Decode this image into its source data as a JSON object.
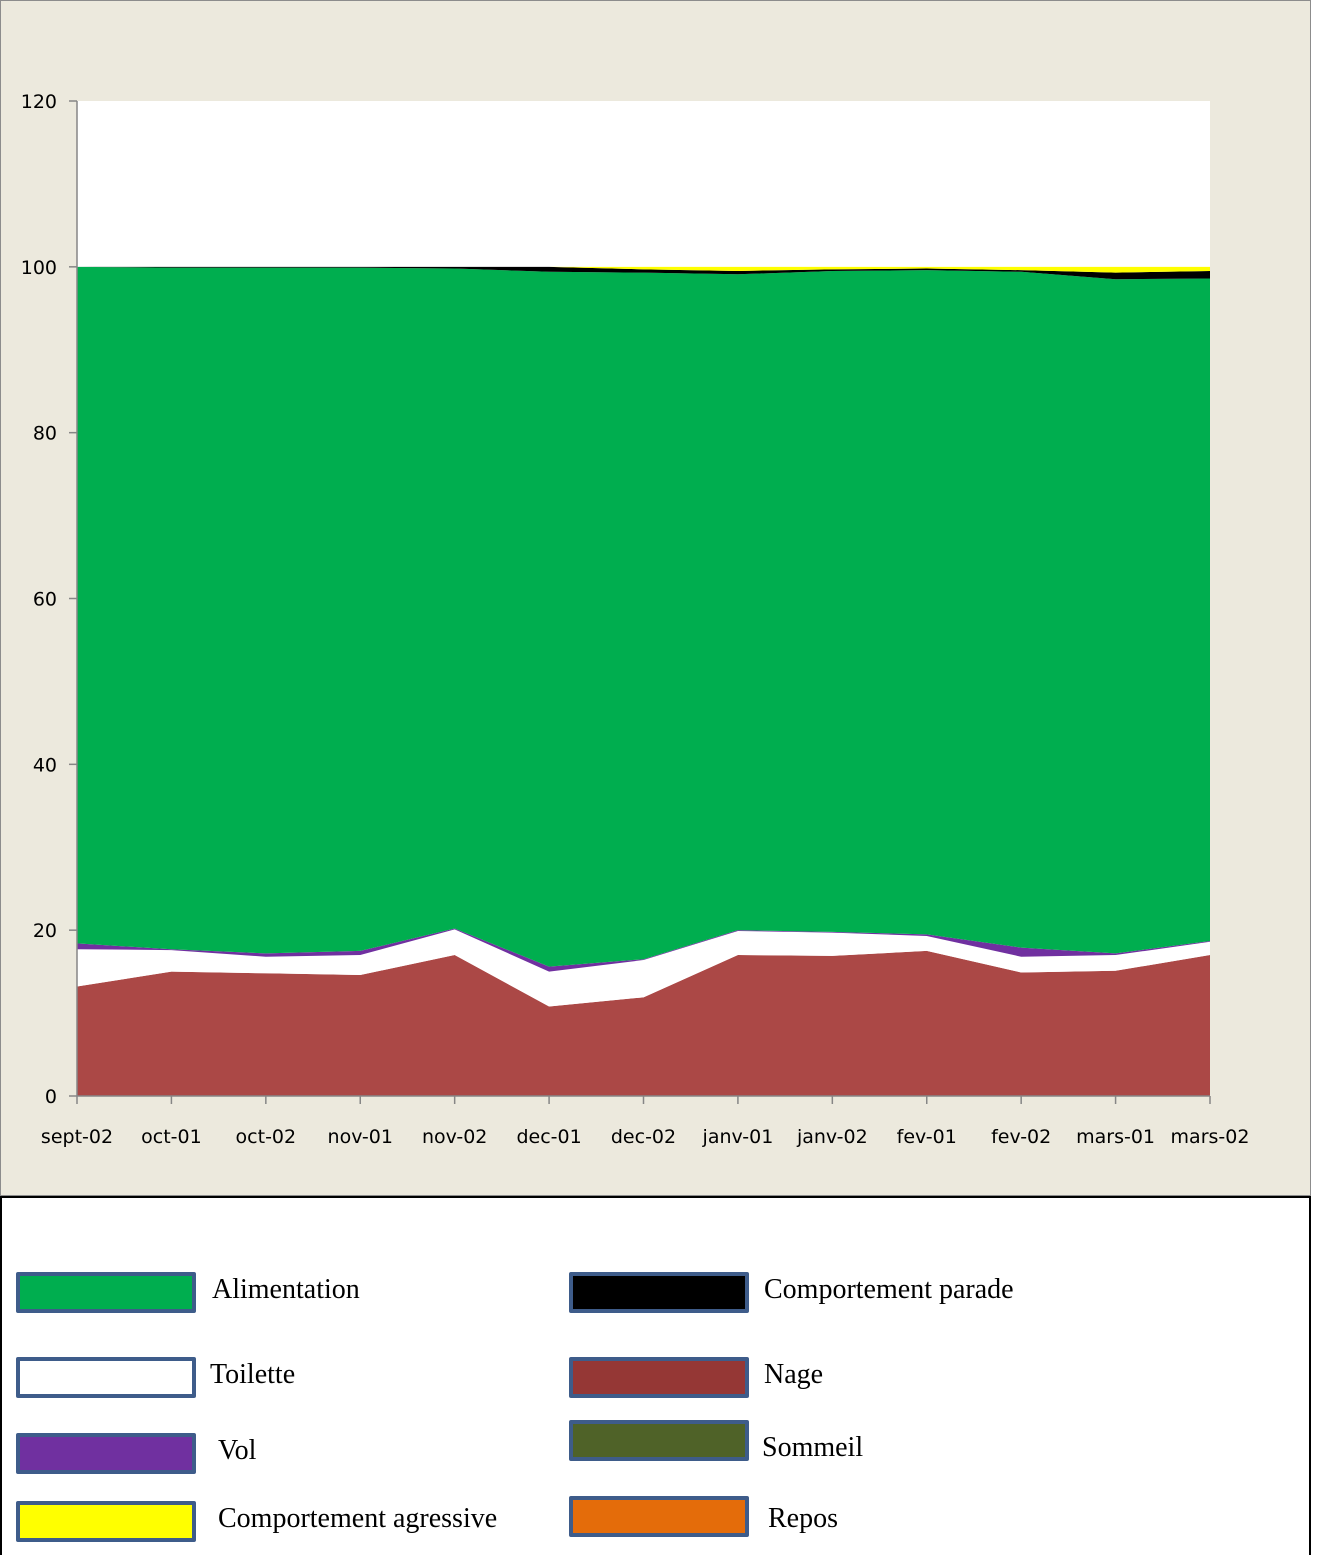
{
  "chart_data": {
    "type": "area",
    "stacked": true,
    "categories": [
      "sept-02",
      "oct-01",
      "oct-02",
      "nov-01",
      "nov-02",
      "dec-01",
      "dec-02",
      "janv-01",
      "janv-02",
      "fev-01",
      "fev-02",
      "mars-01",
      "mars-02"
    ],
    "ylim": [
      0,
      120
    ],
    "yticks": [
      0,
      20,
      40,
      60,
      80,
      100,
      120
    ],
    "grid": false,
    "series": [
      {
        "name": "Nage",
        "color": "#ab4846",
        "values": [
          13.2,
          15.0,
          14.8,
          14.6,
          17.0,
          10.8,
          11.9,
          17.0,
          16.9,
          17.5,
          14.9,
          15.1,
          17.0
        ]
      },
      {
        "name": "Toilette",
        "color": "#ffffff",
        "values": [
          4.5,
          2.6,
          2.0,
          2.4,
          3.1,
          4.2,
          4.5,
          2.9,
          2.8,
          1.8,
          1.9,
          1.9,
          1.6
        ]
      },
      {
        "name": "Vol",
        "color": "#7030a0",
        "values": [
          0.7,
          0.1,
          0.4,
          0.5,
          0.1,
          0.6,
          0.1,
          0.1,
          0.1,
          0.2,
          1.1,
          0.2,
          0.1
        ]
      },
      {
        "name": "Sommeil",
        "color": "#4f6228",
        "values": [
          0,
          0,
          0,
          0,
          0,
          0,
          0,
          0,
          0,
          0,
          0,
          0,
          0
        ]
      },
      {
        "name": "Alimentation",
        "color": "#00ae4f",
        "values": [
          81.6,
          82.2,
          82.7,
          82.4,
          79.6,
          83.8,
          82.8,
          79.1,
          79.7,
          80.1,
          81.5,
          81.3,
          79.9
        ]
      },
      {
        "name": "Comportement parade",
        "color": "#000000",
        "values": [
          0,
          0.1,
          0.1,
          0.1,
          0.2,
          0.6,
          0.4,
          0.4,
          0.2,
          0.2,
          0.2,
          0.8,
          0.9
        ]
      },
      {
        "name": "Comportement agressive",
        "color": "#ffff00",
        "values": [
          0,
          0,
          0,
          0,
          0,
          0,
          0.3,
          0.5,
          0.3,
          0.2,
          0.4,
          0.7,
          0.5
        ]
      },
      {
        "name": "Repos",
        "color": "#e46c0a",
        "values": [
          0,
          0,
          0,
          0,
          0,
          0,
          0,
          0,
          0,
          0,
          0,
          0,
          0
        ]
      }
    ]
  },
  "legend": {
    "placement": "bottom",
    "items": [
      {
        "label": "Alimentation",
        "color": "#00ae4f"
      },
      {
        "label": "Comportement parade",
        "color": "#000000"
      },
      {
        "label": "Toilette",
        "color": "#ffffff"
      },
      {
        "label": "Nage",
        "color": "#953735"
      },
      {
        "label": "Vol",
        "color": "#7030a0"
      },
      {
        "label": "Sommeil",
        "color": "#4f6228"
      },
      {
        "label": "Comportement agressive",
        "color": "#ffff00"
      },
      {
        "label": "Repos",
        "color": "#e46c0a"
      }
    ]
  }
}
